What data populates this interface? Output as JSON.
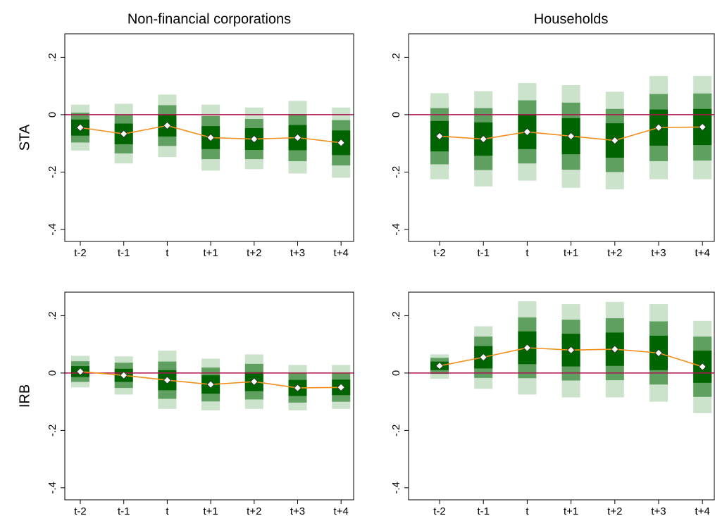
{
  "chart_data": [
    {
      "type": "fan",
      "title": "Non-financial corporations",
      "ylabel": "STA",
      "categories": [
        "t-2",
        "t-1",
        "t",
        "t+1",
        "t+2",
        "t+3",
        "t+4"
      ],
      "values": [
        -0.045,
        -0.067,
        -0.038,
        -0.08,
        -0.085,
        -0.08,
        -0.098
      ],
      "line_color": "#f28e1c",
      "hline": 0,
      "hline_color": "#b0124f",
      "bands": [
        {
          "color": "#cbe2cb",
          "lower": [
            -0.125,
            -0.17,
            -0.148,
            -0.195,
            -0.19,
            -0.205,
            -0.22
          ],
          "upper": [
            0.035,
            0.038,
            0.07,
            0.035,
            0.025,
            0.048,
            0.025
          ]
        },
        {
          "color": "#5f9f5f",
          "lower": [
            -0.097,
            -0.135,
            -0.109,
            -0.155,
            -0.155,
            -0.162,
            -0.177
          ],
          "upper": [
            0.007,
            0.001,
            0.033,
            -0.005,
            -0.015,
            0.002,
            -0.019
          ]
        },
        {
          "color": "#006400",
          "lower": [
            -0.073,
            -0.103,
            -0.076,
            -0.12,
            -0.123,
            -0.124,
            -0.141
          ],
          "upper": [
            -0.017,
            -0.031,
            0,
            -0.04,
            -0.047,
            -0.036,
            -0.055
          ]
        }
      ],
      "ylim": [
        -0.442,
        0.282
      ],
      "yticks": [
        {
          "value": -0.4,
          "label": "-.4"
        },
        {
          "value": -0.2,
          "label": "-.2"
        },
        0,
        {
          "value": 0.2,
          "label": ".2"
        }
      ]
    },
    {
      "type": "fan",
      "title": "Households",
      "categories": [
        "t-2",
        "t-1",
        "t",
        "t+1",
        "t+2",
        "t+3",
        "t+4"
      ],
      "values": [
        -0.075,
        -0.085,
        -0.06,
        -0.075,
        -0.09,
        -0.045,
        -0.043
      ],
      "line_color": "#f28e1c",
      "hline": 0,
      "hline_color": "#b0124f",
      "bands": [
        {
          "color": "#cbe2cb",
          "lower": [
            -0.225,
            -0.25,
            -0.23,
            -0.255,
            -0.26,
            -0.225,
            -0.225
          ],
          "upper": [
            0.075,
            0.082,
            0.11,
            0.103,
            0.08,
            0.135,
            0.135
          ]
        },
        {
          "color": "#5f9f5f",
          "lower": [
            -0.173,
            -0.193,
            -0.17,
            -0.192,
            -0.2,
            -0.162,
            -0.16
          ],
          "upper": [
            0.023,
            0.023,
            0.05,
            0.042,
            0.02,
            0.072,
            0.074
          ]
        },
        {
          "color": "#006400",
          "lower": [
            -0.128,
            -0.143,
            -0.12,
            -0.138,
            -0.15,
            -0.108,
            -0.106
          ],
          "upper": [
            -0.022,
            -0.027,
            0,
            -0.012,
            -0.03,
            0.018,
            0.02
          ]
        }
      ],
      "ylim": [
        -0.442,
        0.282
      ],
      "yticks": [
        {
          "value": -0.4,
          "label": "-.4"
        },
        {
          "value": -0.2,
          "label": "-.2"
        },
        0,
        {
          "value": 0.2,
          "label": ".2"
        }
      ]
    },
    {
      "type": "fan",
      "ylabel": "IRB",
      "categories": [
        "t-2",
        "t-1",
        "t",
        "t+1",
        "t+2",
        "t+3",
        "t+4"
      ],
      "values": [
        0.005,
        -0.008,
        -0.025,
        -0.04,
        -0.03,
        -0.052,
        -0.05
      ],
      "line_color": "#f28e1c",
      "hline": 0,
      "hline_color": "#b0124f",
      "bands": [
        {
          "color": "#cbe2cb",
          "lower": [
            -0.05,
            -0.075,
            -0.125,
            -0.13,
            -0.125,
            -0.13,
            -0.125
          ],
          "upper": [
            0.06,
            0.058,
            0.078,
            0.05,
            0.065,
            0.028,
            0.028
          ]
        },
        {
          "color": "#5f9f5f",
          "lower": [
            -0.031,
            -0.052,
            -0.09,
            -0.099,
            -0.092,
            -0.103,
            -0.1
          ],
          "upper": [
            0.041,
            0.036,
            0.04,
            0.019,
            0.032,
            -0.001,
            0
          ]
        },
        {
          "color": "#006400",
          "lower": [
            -0.014,
            -0.031,
            -0.06,
            -0.072,
            -0.063,
            -0.08,
            -0.077
          ],
          "upper": [
            0.024,
            0.015,
            0.01,
            -0.008,
            0.003,
            -0.024,
            -0.023
          ]
        }
      ],
      "ylim": [
        -0.442,
        0.282
      ],
      "yticks": [
        {
          "value": -0.4,
          "label": "-.4"
        },
        {
          "value": -0.2,
          "label": "-.2"
        },
        0,
        {
          "value": 0.2,
          "label": ".2"
        }
      ]
    },
    {
      "type": "fan",
      "categories": [
        "t-2",
        "t-1",
        "t",
        "t+1",
        "t+2",
        "t+3",
        "t+4"
      ],
      "values": [
        0.025,
        0.055,
        0.088,
        0.08,
        0.083,
        0.07,
        0.022
      ],
      "line_color": "#f28e1c",
      "hline": 0,
      "hline_color": "#b0124f",
      "bands": [
        {
          "color": "#cbe2cb",
          "lower": [
            -0.02,
            -0.055,
            -0.075,
            -0.085,
            -0.085,
            -0.1,
            -0.14
          ],
          "upper": [
            0.065,
            0.163,
            0.25,
            0.24,
            0.248,
            0.24,
            0.182
          ]
        },
        {
          "color": "#5f9f5f",
          "lower": [
            -0.003,
            -0.017,
            -0.018,
            -0.026,
            -0.025,
            -0.04,
            -0.083
          ],
          "upper": [
            0.053,
            0.127,
            0.194,
            0.186,
            0.191,
            0.18,
            0.127
          ]
        },
        {
          "color": "#006400",
          "lower": [
            0.01,
            0.016,
            0.031,
            0.023,
            0.025,
            0.01,
            -0.034
          ],
          "upper": [
            0.04,
            0.094,
            0.145,
            0.137,
            0.141,
            0.13,
            0.078
          ]
        }
      ],
      "ylim": [
        -0.442,
        0.282
      ],
      "yticks": [
        {
          "value": -0.4,
          "label": "-.4"
        },
        {
          "value": -0.2,
          "label": "-.2"
        },
        0,
        {
          "value": 0.2,
          "label": ".2"
        }
      ]
    }
  ]
}
